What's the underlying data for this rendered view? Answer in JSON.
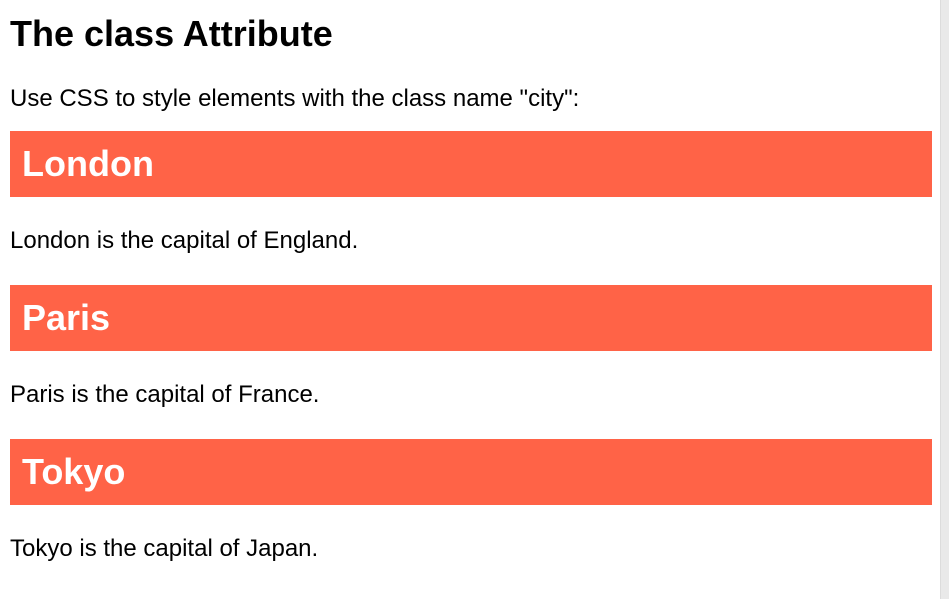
{
  "page": {
    "title": "The class Attribute",
    "intro": "Use CSS to style elements with the class name \"city\":"
  },
  "cities": [
    {
      "heading": "London",
      "text": "London is the capital of England."
    },
    {
      "heading": "Paris",
      "text": "Paris is the capital of France."
    },
    {
      "heading": "Tokyo",
      "text": "Tokyo is the capital of Japan."
    }
  ],
  "colors": {
    "city_background": "#ff6347",
    "city_heading_text": "#ffffff"
  }
}
